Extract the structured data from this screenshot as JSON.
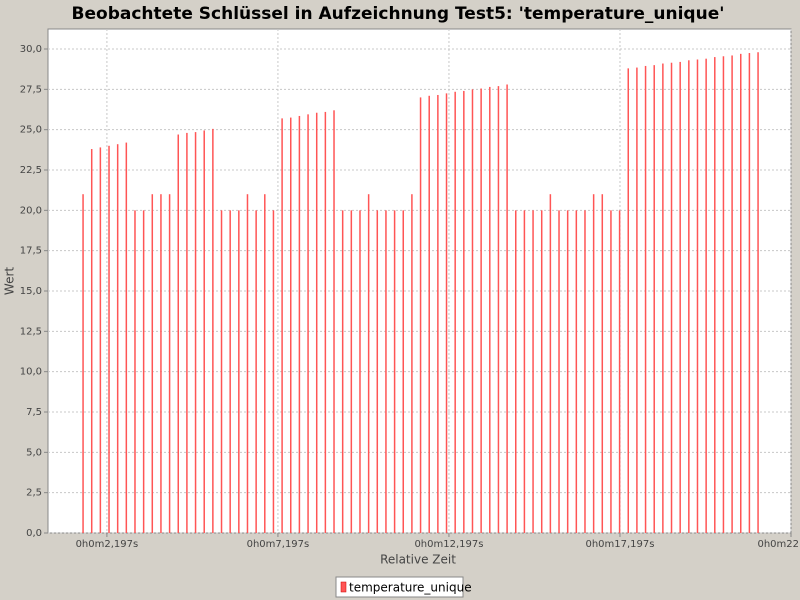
{
  "chart_data": {
    "type": "bar",
    "title": "Beobachtete Schlüssel in Aufzeichnung Test5: 'temperature_unique'",
    "x_label": "Relative Zeit",
    "y_label": "Wert",
    "x": [
      1.5,
      1.753,
      2.006,
      2.259,
      2.512,
      2.765,
      3.018,
      3.271,
      3.524,
      3.777,
      4.03,
      4.283,
      4.536,
      4.789,
      5.042,
      5.295,
      5.548,
      5.801,
      6.054,
      6.307,
      6.56,
      6.813,
      7.066,
      7.319,
      7.572,
      7.825,
      8.078,
      8.331,
      8.584,
      8.837,
      9.09,
      9.343,
      9.596,
      9.849,
      10.102,
      10.355,
      10.608,
      10.861,
      11.114,
      11.367,
      11.62,
      11.873,
      12.126,
      12.379,
      12.632,
      12.885,
      13.138,
      13.391,
      13.644,
      13.897,
      14.15,
      14.403,
      14.656,
      14.909,
      15.162,
      15.415,
      15.668,
      15.921,
      16.174,
      16.427,
      16.68,
      16.933,
      17.186,
      17.439,
      17.692,
      17.945,
      18.198,
      18.451,
      18.704,
      18.957,
      19.21,
      19.463,
      19.716,
      19.969,
      20.222,
      20.475,
      20.728,
      20.981,
      21.234
    ],
    "series": [
      {
        "name": "temperature_unique",
        "color": "#ff5555",
        "values": [
          21,
          23.8,
          23.9,
          24.0,
          24.1,
          24.2,
          20,
          20,
          21,
          21,
          21,
          24.7,
          24.8,
          24.85,
          24.95,
          25.05,
          20,
          20,
          20,
          21,
          20,
          21,
          20,
          25.7,
          25.75,
          25.85,
          25.95,
          26.05,
          26.1,
          26.2,
          20,
          20,
          20,
          21,
          20,
          20,
          20,
          20,
          21,
          27.0,
          27.1,
          27.15,
          27.25,
          27.35,
          27.4,
          27.5,
          27.55,
          27.65,
          27.7,
          27.8,
          20,
          20,
          20,
          20,
          21,
          20,
          20,
          20,
          20,
          21,
          21,
          20,
          20,
          28.8,
          28.85,
          28.95,
          29.0,
          29.1,
          29.15,
          29.2,
          29.3,
          29.35,
          29.4,
          29.5,
          29.55,
          29.6,
          29.7,
          29.75,
          29.8
        ]
      }
    ],
    "xlim": [
      0.475,
      22.197
    ],
    "xticks": [
      {
        "value": 2.197,
        "label": "0h0m2,197s"
      },
      {
        "value": 7.197,
        "label": "0h0m7,197s"
      },
      {
        "value": 12.197,
        "label": "0h0m12,197s"
      },
      {
        "value": 17.197,
        "label": "0h0m17,197s"
      },
      {
        "value": 22.197,
        "label": "0h0m22"
      }
    ],
    "ylim": [
      0,
      31.24
    ],
    "yticks": [
      {
        "value": 0,
        "label": "0,0"
      },
      {
        "value": 2.5,
        "label": "2,5"
      },
      {
        "value": 5,
        "label": "5,0"
      },
      {
        "value": 7.5,
        "label": "7,5"
      },
      {
        "value": 10,
        "label": "10,0"
      },
      {
        "value": 12.5,
        "label": "12,5"
      },
      {
        "value": 15,
        "label": "15,0"
      },
      {
        "value": 17.5,
        "label": "17,5"
      },
      {
        "value": 20,
        "label": "20,0"
      },
      {
        "value": 22.5,
        "label": "22,5"
      },
      {
        "value": 25,
        "label": "25,0"
      },
      {
        "value": 27.5,
        "label": "27,5"
      },
      {
        "value": 30,
        "label": "30,0"
      }
    ],
    "grid": true,
    "legend": "bottom"
  }
}
